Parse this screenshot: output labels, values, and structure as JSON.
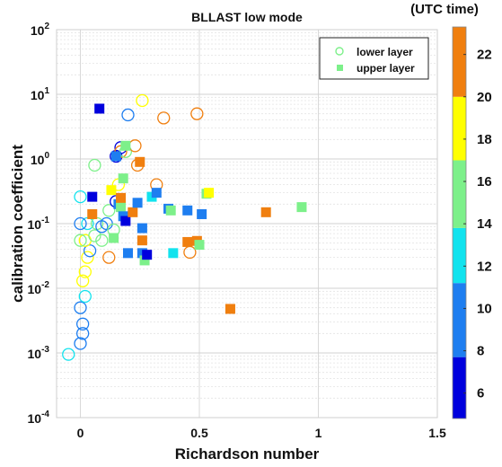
{
  "chart_data": {
    "type": "scatter",
    "title": "BLLAST low mode",
    "xlabel": "Richardson number",
    "ylabel": "calibration coefficient",
    "xlim": [
      -0.1,
      1.5
    ],
    "ylim_log10": [
      -4,
      2
    ],
    "y_scale": "log",
    "x_ticks": [
      0,
      0.5,
      1,
      1.5
    ],
    "x_tick_labels": [
      "0",
      "0.5",
      "1",
      "1.5"
    ],
    "y_ticks_log10": [
      -4,
      -3,
      -2,
      -1,
      0,
      1,
      2
    ],
    "y_tick_labels": [
      "10^-4",
      "10^-3",
      "10^-2",
      "10^-1",
      "10^0",
      "10^1",
      "10^2"
    ],
    "grid": true,
    "legend_position": "top-right",
    "legend": [
      {
        "label": "lower layer",
        "marker": "open circle"
      },
      {
        "label": "upper layer",
        "marker": "filled square"
      }
    ],
    "colorbar": {
      "title": "(UTC time)",
      "range": [
        4.8,
        23.3
      ],
      "tick_values": [
        6,
        8,
        10,
        12,
        14,
        16,
        18,
        20,
        22
      ],
      "tick_labels": [
        "6",
        "8",
        "10",
        "12",
        "14",
        "16",
        "18",
        "20",
        "22"
      ],
      "bands": [
        {
          "from": 4.8,
          "to": 7.7,
          "color": "#0000dd"
        },
        {
          "from": 7.7,
          "to": 11.2,
          "color": "#1e7ef0"
        },
        {
          "from": 11.2,
          "to": 13.8,
          "color": "#12e3ee"
        },
        {
          "from": 13.8,
          "to": 17.0,
          "color": "#7df08a"
        },
        {
          "from": 17.0,
          "to": 20.0,
          "color": "#ffff00"
        },
        {
          "from": 20.0,
          "to": 23.3,
          "color": "#f07f0f"
        }
      ]
    },
    "series": [
      {
        "name": "lower layer",
        "marker": "circle",
        "points": [
          {
            "x": -0.05,
            "y": 0.00095,
            "t": 12.5
          },
          {
            "x": 0.0,
            "y": 0.0014,
            "t": 9
          },
          {
            "x": 0.01,
            "y": 0.002,
            "t": 9
          },
          {
            "x": 0.01,
            "y": 0.0028,
            "t": 9
          },
          {
            "x": 0.0,
            "y": 0.005,
            "t": 9
          },
          {
            "x": 0.02,
            "y": 0.0075,
            "t": 12.5
          },
          {
            "x": 0.01,
            "y": 0.013,
            "t": 18
          },
          {
            "x": 0.02,
            "y": 0.018,
            "t": 18
          },
          {
            "x": 0.03,
            "y": 0.03,
            "t": 18
          },
          {
            "x": 0.04,
            "y": 0.038,
            "t": 9
          },
          {
            "x": 0.02,
            "y": 0.055,
            "t": 18
          },
          {
            "x": 0.0,
            "y": 0.055,
            "t": 15.5
          },
          {
            "x": 0.06,
            "y": 0.065,
            "t": 15.5
          },
          {
            "x": 0.09,
            "y": 0.055,
            "t": 15.5
          },
          {
            "x": 0.03,
            "y": 0.1,
            "t": 12.5
          },
          {
            "x": 0.0,
            "y": 0.1,
            "t": 9
          },
          {
            "x": 0.07,
            "y": 0.1,
            "t": 15.5
          },
          {
            "x": 0.09,
            "y": 0.09,
            "t": 9
          },
          {
            "x": 0.11,
            "y": 0.1,
            "t": 9
          },
          {
            "x": 0.12,
            "y": 0.16,
            "t": 15.5
          },
          {
            "x": 0.14,
            "y": 0.08,
            "t": 15.5
          },
          {
            "x": 0.15,
            "y": 0.22,
            "t": 6
          },
          {
            "x": 0.16,
            "y": 0.4,
            "t": 18
          },
          {
            "x": 0.15,
            "y": 1.1,
            "t": 6
          },
          {
            "x": 0.17,
            "y": 1.5,
            "t": 6
          },
          {
            "x": 0.17,
            "y": 1.3,
            "t": 22
          },
          {
            "x": 0.19,
            "y": 1.3,
            "t": 15.5
          },
          {
            "x": 0.2,
            "y": 4.8,
            "t": 9
          },
          {
            "x": 0.23,
            "y": 1.6,
            "t": 22
          },
          {
            "x": 0.24,
            "y": 0.8,
            "t": 22
          },
          {
            "x": 0.26,
            "y": 8.0,
            "t": 18
          },
          {
            "x": 0.32,
            "y": 0.4,
            "t": 22
          },
          {
            "x": 0.35,
            "y": 4.3,
            "t": 22
          },
          {
            "x": 0.49,
            "y": 5.0,
            "t": 22
          },
          {
            "x": 0.46,
            "y": 0.036,
            "t": 22
          },
          {
            "x": 0.0,
            "y": 0.26,
            "t": 12.5
          },
          {
            "x": 0.06,
            "y": 0.8,
            "t": 15.5
          },
          {
            "x": 0.12,
            "y": 0.03,
            "t": 22
          }
        ]
      },
      {
        "name": "upper layer",
        "marker": "square",
        "points": [
          {
            "x": 0.05,
            "y": 0.26,
            "t": 6
          },
          {
            "x": 0.05,
            "y": 0.14,
            "t": 22
          },
          {
            "x": 0.08,
            "y": 6.0,
            "t": 6
          },
          {
            "x": 0.13,
            "y": 0.33,
            "t": 18
          },
          {
            "x": 0.14,
            "y": 0.06,
            "t": 15.5
          },
          {
            "x": 0.15,
            "y": 1.1,
            "t": 9
          },
          {
            "x": 0.16,
            "y": 0.2,
            "t": 9
          },
          {
            "x": 0.17,
            "y": 0.18,
            "t": 15.5
          },
          {
            "x": 0.17,
            "y": 0.25,
            "t": 22
          },
          {
            "x": 0.18,
            "y": 0.5,
            "t": 15.5
          },
          {
            "x": 0.18,
            "y": 0.13,
            "t": 9
          },
          {
            "x": 0.19,
            "y": 0.11,
            "t": 6
          },
          {
            "x": 0.19,
            "y": 1.6,
            "t": 15.5
          },
          {
            "x": 0.2,
            "y": 0.035,
            "t": 9
          },
          {
            "x": 0.22,
            "y": 0.15,
            "t": 22
          },
          {
            "x": 0.24,
            "y": 0.21,
            "t": 9
          },
          {
            "x": 0.25,
            "y": 0.9,
            "t": 22
          },
          {
            "x": 0.26,
            "y": 0.055,
            "t": 22
          },
          {
            "x": 0.26,
            "y": 0.085,
            "t": 9
          },
          {
            "x": 0.26,
            "y": 0.035,
            "t": 9
          },
          {
            "x": 0.27,
            "y": 0.027,
            "t": 15.5
          },
          {
            "x": 0.28,
            "y": 0.033,
            "t": 6
          },
          {
            "x": 0.3,
            "y": 0.26,
            "t": 12.5
          },
          {
            "x": 0.32,
            "y": 0.3,
            "t": 9
          },
          {
            "x": 0.37,
            "y": 0.17,
            "t": 9
          },
          {
            "x": 0.38,
            "y": 0.16,
            "t": 15.5
          },
          {
            "x": 0.39,
            "y": 0.035,
            "t": 12.5
          },
          {
            "x": 0.45,
            "y": 0.16,
            "t": 9
          },
          {
            "x": 0.45,
            "y": 0.052,
            "t": 22
          },
          {
            "x": 0.49,
            "y": 0.054,
            "t": 22
          },
          {
            "x": 0.5,
            "y": 0.047,
            "t": 15.5
          },
          {
            "x": 0.51,
            "y": 0.14,
            "t": 9
          },
          {
            "x": 0.53,
            "y": 0.29,
            "t": 15.5
          },
          {
            "x": 0.54,
            "y": 0.3,
            "t": 18
          },
          {
            "x": 0.63,
            "y": 0.0048,
            "t": 22
          },
          {
            "x": 0.78,
            "y": 0.15,
            "t": 22
          },
          {
            "x": 0.93,
            "y": 0.18,
            "t": 15.5
          }
        ]
      }
    ]
  }
}
